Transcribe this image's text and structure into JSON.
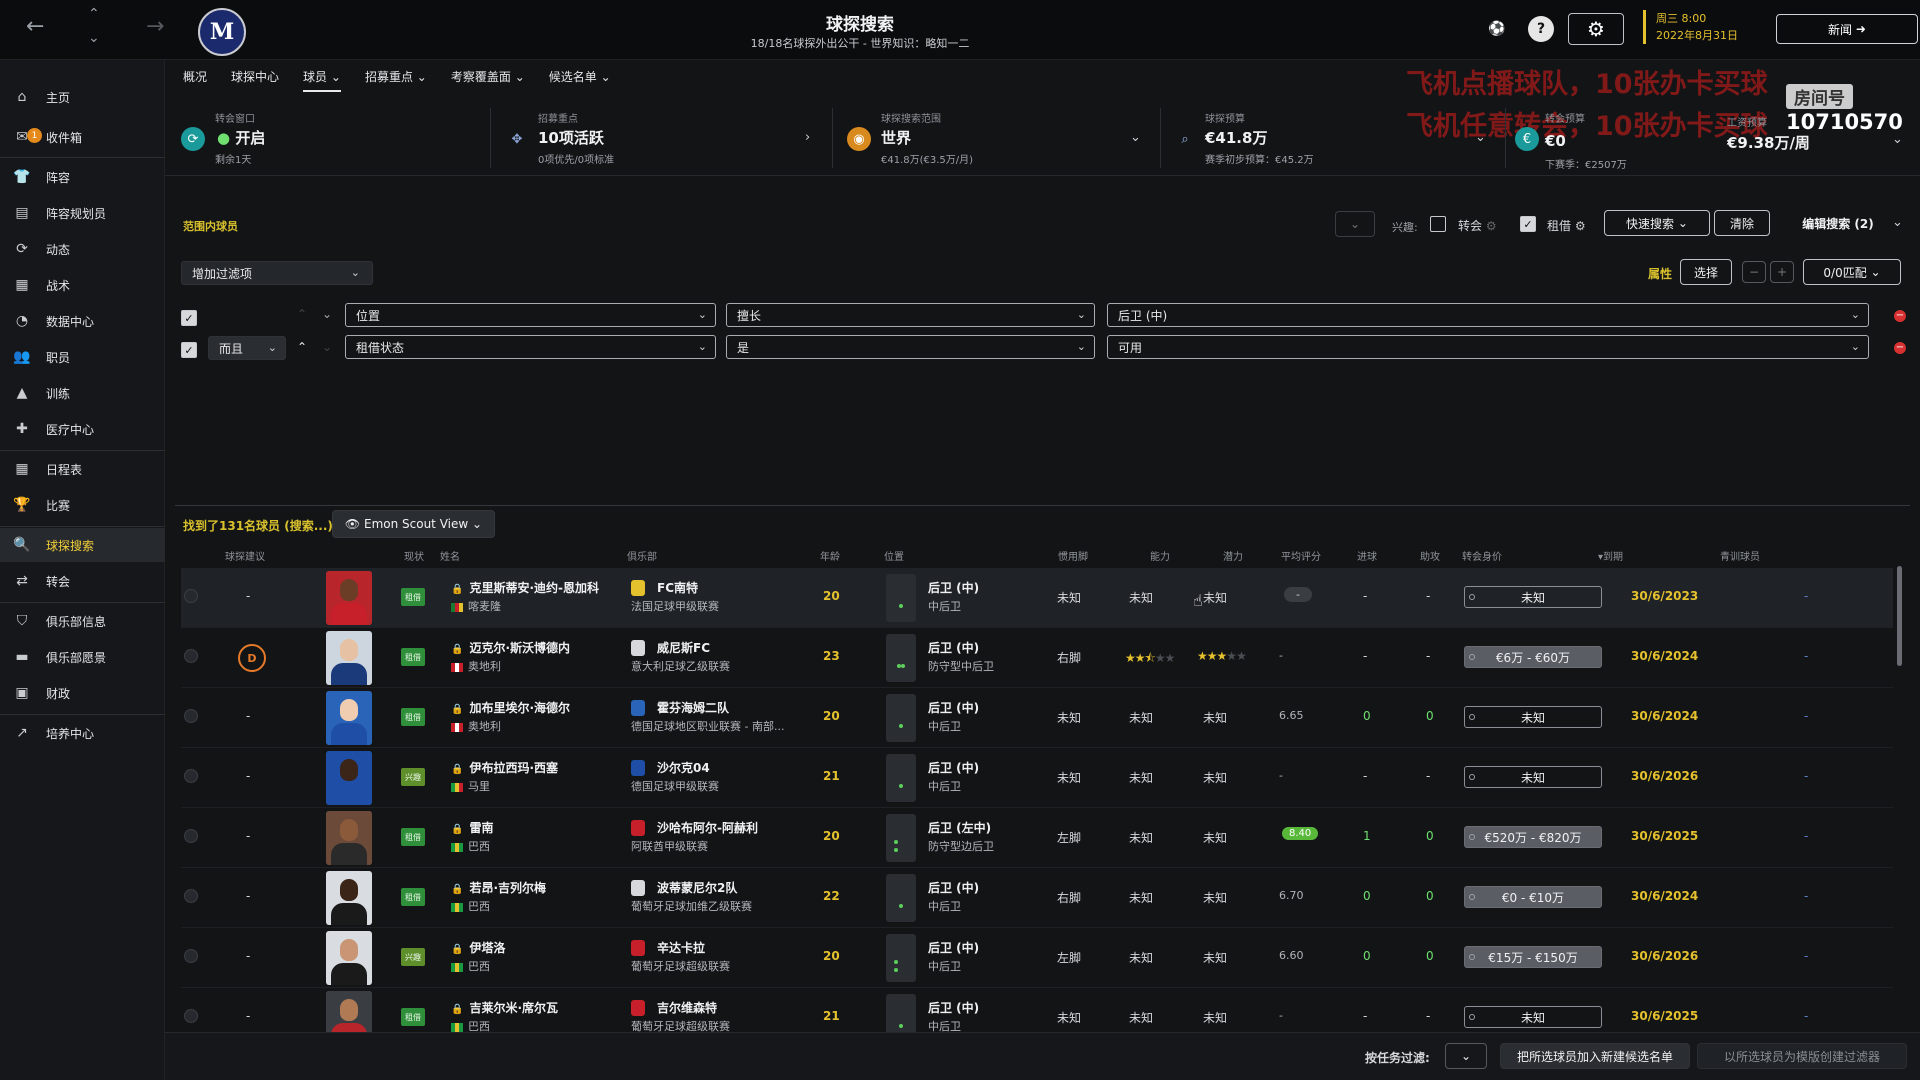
{
  "header": {
    "title": "球探搜索",
    "subtitle": "18/18名球探外出公干 - 世界知识：略知一二",
    "date_line1": "周三 8:00",
    "date_line2": "2022年8月31日",
    "news_label": "新闻"
  },
  "overlay": {
    "line1": "飞机点播球队，10张办卡买球",
    "line2": "飞机任意转会，10张办卡买球",
    "room_label": "房间号",
    "room_number": "10710570"
  },
  "sidebar": {
    "items": [
      {
        "label": "主页",
        "icon": "home-icon"
      },
      {
        "label": "收件箱",
        "icon": "inbox-icon",
        "badge": "1"
      },
      {
        "label": "阵容",
        "icon": "shirt-icon"
      },
      {
        "label": "阵容规划员",
        "icon": "planner-icon"
      },
      {
        "label": "动态",
        "icon": "dynamics-icon"
      },
      {
        "label": "战术",
        "icon": "tactics-icon"
      },
      {
        "label": "数据中心",
        "icon": "data-icon"
      },
      {
        "label": "职员",
        "icon": "staff-icon"
      },
      {
        "label": "训练",
        "icon": "training-icon"
      },
      {
        "label": "医疗中心",
        "icon": "medical-icon"
      },
      {
        "label": "日程表",
        "icon": "calendar-icon"
      },
      {
        "label": "比赛",
        "icon": "trophy-icon"
      },
      {
        "label": "球探搜索",
        "icon": "search-icon"
      },
      {
        "label": "转会",
        "icon": "transfer-icon"
      },
      {
        "label": "俱乐部信息",
        "icon": "shield-icon"
      },
      {
        "label": "俱乐部愿景",
        "icon": "vision-icon"
      },
      {
        "label": "财政",
        "icon": "finance-icon"
      },
      {
        "label": "培养中心",
        "icon": "development-icon"
      }
    ]
  },
  "tabs": [
    {
      "label": "概况"
    },
    {
      "label": "球探中心"
    },
    {
      "label": "球员",
      "dropdown": true
    },
    {
      "label": "招募重点",
      "dropdown": true
    },
    {
      "label": "考察覆盖面",
      "dropdown": true
    },
    {
      "label": "候选名单",
      "dropdown": true
    }
  ],
  "info": {
    "window_label": "转会窗口",
    "window_value": "开启",
    "window_sub": "剩余1天",
    "focus_label": "招募重点",
    "focus_value": "10项活跃",
    "focus_sub": "0项优先/0项标准",
    "range_label": "球探搜索范围",
    "range_value": "世界",
    "range_sub": "€41.8万(€3.5万/月)",
    "budget_label": "球探预算",
    "budget_value": "€41.8万",
    "budget_sub": "赛季初步预算：€45.2万",
    "transfer_label": "转会预算",
    "transfer_value": "€0",
    "transfer_sub": "下赛季：€2507万",
    "wage_label": "工资预算",
    "wage_value": "€9.38万/周"
  },
  "filterbar": {
    "section_title": "范围内球员",
    "interest_label": "兴趣:",
    "transfer_check": "转会",
    "loan_check": "租借",
    "quick_search": "快速搜索",
    "clear": "清除",
    "edit_search": "编辑搜索 (2)",
    "add_filter": "增加过滤项",
    "attributes_label": "属性",
    "select_label": "选择",
    "match_label": "0/0匹配"
  },
  "filters": [
    {
      "conj": "",
      "field": "位置",
      "op": "擅长",
      "value": "后卫 (中)"
    },
    {
      "conj": "而且",
      "field": "租借状态",
      "op": "是",
      "value": "可用"
    }
  ],
  "results": {
    "found_text": "找到了131名球员 (搜索...)",
    "view_label": "Emon Scout View"
  },
  "table": {
    "headers": [
      "球探建议",
      "现状",
      "姓名",
      "俱乐部",
      "年龄",
      "位置",
      "惯用脚",
      "能力",
      "潜力",
      "平均评分",
      "进球",
      "助攻",
      "转会身价",
      "▾到期",
      "青训球员"
    ],
    "rows": [
      {
        "recommend": "-",
        "status": "租借",
        "name": "克里斯蒂安·迪约-恩加科",
        "nation": "喀麦隆",
        "club": "FC南特",
        "league": "法国足球甲级联赛",
        "age": "20",
        "pos": "后卫 (中)",
        "role": "中后卫",
        "foot": "未知",
        "ability": "未知",
        "potential": "未知",
        "rating": "-",
        "goals": "-",
        "assists": "-",
        "value": "未知",
        "expiry": "30/6/2023",
        "youth": "-"
      },
      {
        "recommend": "D",
        "status": "租借",
        "name": "迈克尔·斯沃博德内",
        "nation": "奥地利",
        "club": "威尼斯FC",
        "league": "意大利足球乙级联赛",
        "age": "23",
        "pos": "后卫 (中)",
        "role": "防守型中后卫",
        "foot": "右脚",
        "ability": 2.5,
        "potential": 3,
        "rating": "-",
        "goals": "-",
        "assists": "-",
        "value": "€6万 - €60万",
        "expiry": "30/6/2024",
        "youth": "-"
      },
      {
        "recommend": "-",
        "status": "租借",
        "name": "加布里埃尔·海德尔",
        "nation": "奥地利",
        "club": "霍芬海姆二队",
        "league": "德国足球地区职业联赛 - 南部...",
        "age": "20",
        "pos": "后卫 (中)",
        "role": "中后卫",
        "foot": "未知",
        "ability": "未知",
        "potential": "未知",
        "rating": "6.65",
        "goals": "0",
        "assists": "0",
        "value": "未知",
        "expiry": "30/6/2024",
        "youth": "-"
      },
      {
        "recommend": "-",
        "status": "兴趣",
        "name": "伊布拉西玛·西塞",
        "nation": "马里",
        "club": "沙尔克04",
        "league": "德国足球甲级联赛",
        "age": "21",
        "pos": "后卫 (中)",
        "role": "中后卫",
        "foot": "未知",
        "ability": "未知",
        "potential": "未知",
        "rating": "-",
        "goals": "-",
        "assists": "-",
        "value": "未知",
        "expiry": "30/6/2026",
        "youth": "-"
      },
      {
        "recommend": "-",
        "status": "租借",
        "name": "雷南",
        "nation": "巴西",
        "club": "沙哈布阿尔-阿赫利",
        "league": "阿联酋甲级联赛",
        "age": "20",
        "pos": "后卫 (左中)",
        "role": "防守型边后卫",
        "foot": "左脚",
        "ability": "未知",
        "potential": "未知",
        "rating": "8.40",
        "goals": "1",
        "assists": "0",
        "value": "€520万 - €820万",
        "expiry": "30/6/2025",
        "youth": "-"
      },
      {
        "recommend": "-",
        "status": "租借",
        "name": "若昂·吉列尔梅",
        "nation": "巴西",
        "club": "波蒂蒙尼尔2队",
        "league": "葡萄牙足球加维乙级联赛",
        "age": "22",
        "pos": "后卫 (中)",
        "role": "中后卫",
        "foot": "右脚",
        "ability": "未知",
        "potential": "未知",
        "rating": "6.70",
        "goals": "0",
        "assists": "0",
        "value": "€0 - €10万",
        "expiry": "30/6/2024",
        "youth": "-"
      },
      {
        "recommend": "-",
        "status": "兴趣",
        "name": "伊塔洛",
        "nation": "巴西",
        "club": "辛达卡拉",
        "league": "葡萄牙足球超级联赛",
        "age": "20",
        "pos": "后卫 (中)",
        "role": "中后卫",
        "foot": "左脚",
        "ability": "未知",
        "potential": "未知",
        "rating": "6.60",
        "goals": "0",
        "assists": "0",
        "value": "€15万 - €150万",
        "expiry": "30/6/2026",
        "youth": "-"
      },
      {
        "recommend": "-",
        "status": "租借",
        "name": "吉莱尔米·席尔瓦",
        "nation": "巴西",
        "club": "吉尔维森特",
        "league": "葡萄牙足球超级联赛",
        "age": "21",
        "pos": "后卫 (中)",
        "role": "中后卫",
        "foot": "未知",
        "ability": "未知",
        "potential": "未知",
        "rating": "-",
        "goals": "-",
        "assists": "-",
        "value": "未知",
        "expiry": "30/6/2025",
        "youth": "-"
      }
    ]
  },
  "bottom": {
    "filter_label": "按任务过滤:",
    "add_shortlist": "把所选球员加入新建候选名单",
    "create_filter": "以所选球员为模版创建过滤器"
  },
  "colors": {
    "accent_yellow": "#e5c12e",
    "status_green": "#2f8f3a",
    "rating_green": "#58b83a",
    "remove_red": "#d63030"
  }
}
